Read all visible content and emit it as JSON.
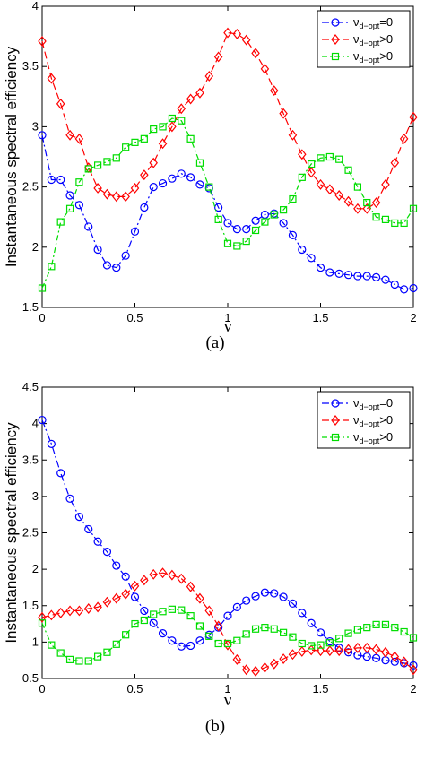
{
  "chart_data": [
    {
      "type": "line",
      "caption": "(a)",
      "ylabel": "Instantaneous spectral efficiency",
      "xlabel": "ν",
      "xlim": [
        0,
        2
      ],
      "ylim": [
        1.5,
        4
      ],
      "xticks": [
        0,
        0.5,
        1,
        1.5,
        2
      ],
      "xtick_labels": [
        "0",
        "0.5",
        "1",
        "1.5",
        "2"
      ],
      "yticks": [
        1.5,
        2,
        2.5,
        3,
        3.5,
        4
      ],
      "ytick_labels": [
        "1.5",
        "2",
        "2.5",
        "3",
        "3.5",
        "4"
      ],
      "grid": false,
      "legend_position": "top-right",
      "x": [
        0,
        0.05,
        0.1,
        0.15,
        0.2,
        0.25,
        0.3,
        0.35,
        0.4,
        0.45,
        0.5,
        0.55,
        0.6,
        0.65,
        0.7,
        0.75,
        0.8,
        0.85,
        0.9,
        0.95,
        1.0,
        1.05,
        1.1,
        1.15,
        1.2,
        1.25,
        1.3,
        1.35,
        1.4,
        1.45,
        1.5,
        1.55,
        1.6,
        1.65,
        1.7,
        1.75,
        1.8,
        1.85,
        1.9,
        1.95,
        2.0
      ],
      "series": [
        {
          "name_main": "ν",
          "name_sub": "d−opt",
          "name_tail": "=0",
          "color": "#0000ff",
          "marker": "circle",
          "dash": "8,3,2,3",
          "values": [
            2.93,
            2.56,
            2.56,
            2.43,
            2.35,
            2.17,
            1.98,
            1.85,
            1.83,
            1.93,
            2.13,
            2.33,
            2.5,
            2.53,
            2.57,
            2.61,
            2.58,
            2.52,
            2.49,
            2.33,
            2.2,
            2.15,
            2.15,
            2.22,
            2.27,
            2.28,
            2.2,
            2.1,
            1.98,
            1.91,
            1.83,
            1.79,
            1.78,
            1.77,
            1.76,
            1.76,
            1.75,
            1.73,
            1.69,
            1.65,
            1.66
          ]
        },
        {
          "name_main": "ν",
          "name_sub": "d−opt",
          "name_tail": ">0",
          "color": "#ff0000",
          "marker": "diamond",
          "dash": "8,4",
          "values": [
            3.71,
            3.4,
            3.19,
            2.93,
            2.9,
            2.66,
            2.49,
            2.44,
            2.42,
            2.42,
            2.49,
            2.6,
            2.7,
            2.86,
            3.0,
            3.15,
            3.23,
            3.28,
            3.42,
            3.58,
            3.78,
            3.77,
            3.72,
            3.61,
            3.48,
            3.3,
            3.11,
            2.93,
            2.77,
            2.62,
            2.52,
            2.48,
            2.43,
            2.38,
            2.32,
            2.32,
            2.37,
            2.52,
            2.7,
            2.9,
            3.08
          ]
        },
        {
          "name_main": "ν",
          "name_sub": "d−opt",
          "name_tail": ">0",
          "color": "#00dd00",
          "marker": "square",
          "dash": "6,3,2,3",
          "values": [
            1.66,
            1.84,
            2.21,
            2.32,
            2.54,
            2.65,
            2.68,
            2.71,
            2.74,
            2.83,
            2.87,
            2.9,
            2.98,
            3.0,
            3.07,
            3.05,
            2.9,
            2.7,
            2.5,
            2.23,
            2.03,
            2.01,
            2.05,
            2.14,
            2.21,
            2.27,
            2.31,
            2.4,
            2.58,
            2.69,
            2.74,
            2.75,
            2.73,
            2.64,
            2.5,
            2.37,
            2.25,
            2.23,
            2.2,
            2.2,
            2.32
          ]
        }
      ]
    },
    {
      "type": "line",
      "caption": "(b)",
      "ylabel": "Instantaneous spectral efficiency",
      "xlabel": "ν",
      "xlim": [
        0,
        2
      ],
      "ylim": [
        0.5,
        4.5
      ],
      "xticks": [
        0,
        0.5,
        1,
        1.5,
        2
      ],
      "xtick_labels": [
        "0",
        "0.5",
        "1",
        "1.5",
        "2"
      ],
      "yticks": [
        0.5,
        1,
        1.5,
        2,
        2.5,
        3,
        3.5,
        4,
        4.5
      ],
      "ytick_labels": [
        "0.5",
        "1",
        "1.5",
        "2",
        "2.5",
        "3",
        "3.5",
        "4",
        "4.5"
      ],
      "grid": false,
      "legend_position": "top-right",
      "x": [
        0,
        0.05,
        0.1,
        0.15,
        0.2,
        0.25,
        0.3,
        0.35,
        0.4,
        0.45,
        0.5,
        0.55,
        0.6,
        0.65,
        0.7,
        0.75,
        0.8,
        0.85,
        0.9,
        0.95,
        1.0,
        1.05,
        1.1,
        1.15,
        1.2,
        1.25,
        1.3,
        1.35,
        1.4,
        1.45,
        1.5,
        1.55,
        1.6,
        1.65,
        1.7,
        1.75,
        1.8,
        1.85,
        1.9,
        1.95,
        2.0
      ],
      "series": [
        {
          "name_main": "ν",
          "name_sub": "d−opt",
          "name_tail": "=0",
          "color": "#0000ff",
          "marker": "circle",
          "dash": "8,3,2,3",
          "values": [
            4.05,
            3.72,
            3.32,
            2.97,
            2.72,
            2.55,
            2.38,
            2.24,
            2.05,
            1.9,
            1.62,
            1.43,
            1.26,
            1.12,
            1.02,
            0.94,
            0.95,
            1.02,
            1.1,
            1.2,
            1.36,
            1.48,
            1.57,
            1.63,
            1.68,
            1.67,
            1.62,
            1.53,
            1.4,
            1.26,
            1.13,
            1.01,
            0.92,
            0.86,
            0.82,
            0.8,
            0.78,
            0.75,
            0.73,
            0.71,
            0.68
          ]
        },
        {
          "name_main": "ν",
          "name_sub": "d−opt",
          "name_tail": ">0",
          "color": "#ff0000",
          "marker": "diamond",
          "dash": "8,4",
          "values": [
            1.34,
            1.37,
            1.4,
            1.43,
            1.43,
            1.46,
            1.48,
            1.55,
            1.6,
            1.66,
            1.77,
            1.85,
            1.93,
            1.95,
            1.92,
            1.87,
            1.76,
            1.6,
            1.43,
            1.22,
            0.96,
            0.76,
            0.62,
            0.6,
            0.65,
            0.7,
            0.77,
            0.83,
            0.87,
            0.89,
            0.88,
            0.88,
            0.88,
            0.9,
            0.92,
            0.92,
            0.9,
            0.86,
            0.8,
            0.73,
            0.62
          ]
        },
        {
          "name_main": "ν",
          "name_sub": "d−opt",
          "name_tail": ">0",
          "color": "#00dd00",
          "marker": "square",
          "dash": "6,3,2,3",
          "values": [
            1.26,
            0.96,
            0.85,
            0.76,
            0.74,
            0.74,
            0.8,
            0.86,
            0.97,
            1.1,
            1.25,
            1.3,
            1.38,
            1.42,
            1.45,
            1.44,
            1.36,
            1.22,
            1.08,
            0.98,
            0.98,
            1.02,
            1.11,
            1.18,
            1.2,
            1.18,
            1.13,
            1.07,
            0.98,
            0.95,
            0.96,
            0.99,
            1.05,
            1.12,
            1.17,
            1.2,
            1.24,
            1.24,
            1.2,
            1.14,
            1.06
          ]
        }
      ]
    }
  ]
}
